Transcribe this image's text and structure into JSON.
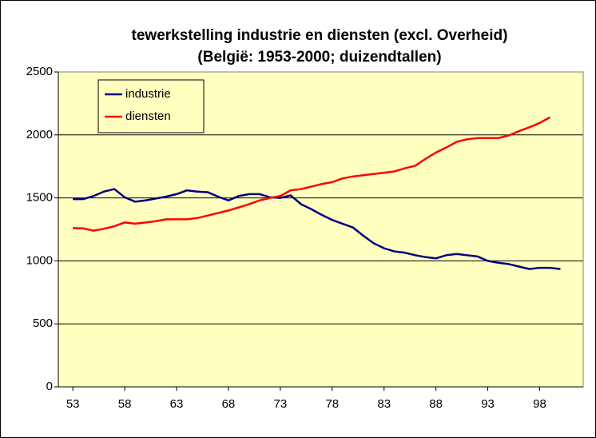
{
  "chart_data": {
    "type": "line",
    "title": "tewerkstelling industrie  en diensten (excl. Overheid)",
    "subtitle": "(België: 1953-2000; duizendtallen)",
    "x": [
      53,
      54,
      55,
      56,
      57,
      58,
      59,
      60,
      61,
      62,
      63,
      64,
      65,
      66,
      67,
      68,
      69,
      70,
      71,
      72,
      73,
      74,
      75,
      76,
      77,
      78,
      79,
      80,
      81,
      82,
      83,
      84,
      85,
      86,
      87,
      88,
      89,
      90,
      91,
      92,
      93,
      94,
      95,
      96,
      97,
      98,
      99,
      100
    ],
    "series": [
      {
        "name": "industrie",
        "color": "#000080",
        "values": [
          1490,
          1490,
          1515,
          1550,
          1570,
          1505,
          1470,
          1480,
          1495,
          1510,
          1530,
          1560,
          1550,
          1545,
          1510,
          1480,
          1515,
          1530,
          1530,
          1505,
          1500,
          1520,
          1450,
          1410,
          1365,
          1325,
          1295,
          1265,
          1200,
          1140,
          1100,
          1075,
          1065,
          1045,
          1030,
          1020,
          1045,
          1055,
          1045,
          1035,
          1000,
          985,
          975,
          955,
          935,
          945,
          945,
          935
        ]
      },
      {
        "name": "diensten",
        "color": "#ff0000",
        "values": [
          1260,
          1258,
          1240,
          1255,
          1275,
          1305,
          1295,
          1305,
          1315,
          1330,
          1330,
          1330,
          1340,
          1360,
          1380,
          1400,
          1425,
          1450,
          1480,
          1500,
          1515,
          1560,
          1570,
          1590,
          1610,
          1625,
          1655,
          1670,
          1680,
          1690,
          1700,
          1710,
          1735,
          1755,
          1810,
          1860,
          1900,
          1945,
          1965,
          1975,
          1975,
          1975,
          1995,
          2030,
          2060,
          2095,
          2140,
          null
        ]
      }
    ],
    "xlim": [
      51.6,
      102.2
    ],
    "xticks": [
      53,
      58,
      63,
      68,
      73,
      78,
      83,
      88,
      93,
      98
    ],
    "ylim": [
      0,
      2500
    ],
    "yticks": [
      0,
      500,
      1000,
      1500,
      2000,
      2500
    ],
    "grid": true,
    "legend": "top-left",
    "background": "#ffffc0"
  }
}
